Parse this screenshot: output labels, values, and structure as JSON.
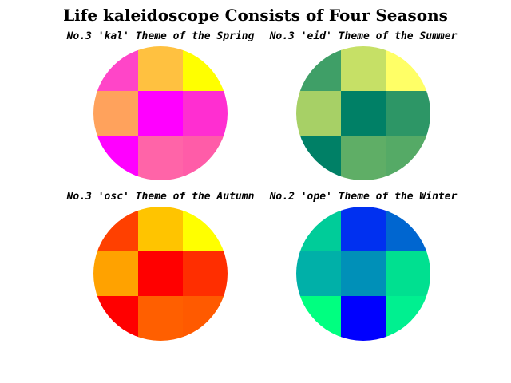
{
  "title": "Life kaleidoscope Consists of Four Seasons",
  "chart_data": [
    {
      "type": "heatmap",
      "title": "No.3 'kal' Theme of the Spring",
      "grid": [
        [
          "#ff45c8",
          "#ffc140",
          "#ffff00"
        ],
        [
          "#ffa25c",
          "#ff00ff",
          "#ff2ed1"
        ],
        [
          "#ff00ff",
          "#ff64a8",
          "#ff5ca8"
        ]
      ]
    },
    {
      "type": "heatmap",
      "title": "No.3 'eid' Theme of the Summer",
      "grid": [
        [
          "#3f9f67",
          "#c6e066",
          "#ffff66"
        ],
        [
          "#a7d066",
          "#008066",
          "#2d9666"
        ],
        [
          "#008066",
          "#5fae66",
          "#55aa66"
        ]
      ]
    },
    {
      "type": "heatmap",
      "title": "No.3 'osc' Theme of the Autumn",
      "grid": [
        [
          "#ff4000",
          "#ffc400",
          "#ffff00"
        ],
        [
          "#ffa200",
          "#ff0000",
          "#ff2e00"
        ],
        [
          "#ff0000",
          "#ff5f00",
          "#ff5a00"
        ]
      ]
    },
    {
      "type": "heatmap",
      "title": "No.2 'ope' Theme of the Winter",
      "grid": [
        [
          "#00cc99",
          "#0030f0",
          "#0066d0"
        ],
        [
          "#00b0a8",
          "#0090b8",
          "#00e090"
        ],
        [
          "#00ff80",
          "#0000ff",
          "#00f090"
        ]
      ]
    }
  ]
}
